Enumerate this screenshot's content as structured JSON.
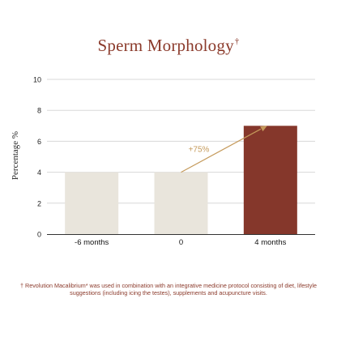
{
  "title": "Sperm Morphology",
  "title_mark": "†",
  "annotation": "+75%",
  "footnote": "† Revolution Macalibrium* was used in combination with an integrative medicine protocol consisting of diet, lifestyle suggestions (including icing the testes), supplements and acupuncture visits.",
  "colors": {
    "title": "#8b3a2b",
    "bar_light": "#e9e5dc",
    "bar_highlight": "#85372b",
    "arrow": "#c59a5b",
    "grid": "#d8d8d8",
    "axis": "#333333"
  },
  "chart_data": {
    "type": "bar",
    "title": "Sperm Morphology",
    "categories": [
      "-6 months",
      "0",
      "4 months"
    ],
    "values": [
      4,
      4,
      7
    ],
    "ylabel": "Percentage %",
    "xlabel": "",
    "ylim": [
      0,
      10
    ],
    "yticks": [
      0,
      2,
      4,
      6,
      8,
      10
    ],
    "grid": true,
    "highlight_index": 2,
    "annotation": "+75%"
  }
}
